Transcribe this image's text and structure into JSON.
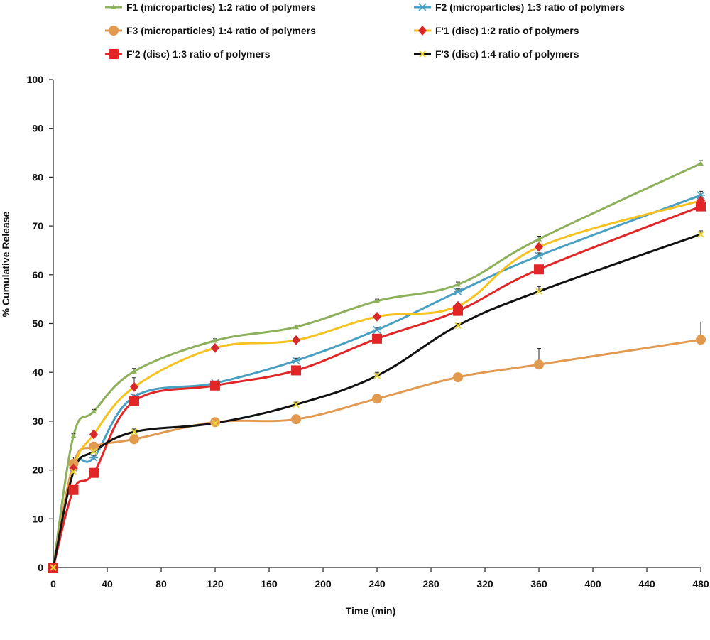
{
  "chart_data": {
    "type": "line",
    "xlabel": "Time (min)",
    "ylabel": "% Cumulative Release",
    "xlim": [
      0,
      480
    ],
    "ylim": [
      0,
      100
    ],
    "x_ticks": [
      "0",
      "40",
      "80",
      "120",
      "160",
      "200",
      "240",
      "280",
      "320",
      "360",
      "400",
      "440",
      "480"
    ],
    "y_ticks": [
      "0",
      "10",
      "20",
      "30",
      "40",
      "50",
      "60",
      "70",
      "80",
      "90",
      "100"
    ],
    "grid": false,
    "legend_position": "top",
    "x": [
      0,
      15,
      30,
      60,
      120,
      180,
      240,
      300,
      360,
      480
    ],
    "series": [
      {
        "name": "F1 (microparticles) 1:2 ratio of polymers",
        "color": "#8db05a",
        "marker": "triangle",
        "values": [
          0,
          27,
          32,
          40.2,
          46.5,
          49.3,
          54.6,
          58,
          67.3,
          82.8
        ],
        "error": [
          0,
          0.4,
          0.4,
          0.6,
          0.4,
          0.4,
          0.4,
          0.5,
          0.6,
          0.6
        ]
      },
      {
        "name": "F2 (microparticles) 1:3 ratio of polymers",
        "color": "#4aa0c2",
        "marker": "asterisk",
        "values": [
          0,
          20.5,
          22.5,
          35,
          37.8,
          42.4,
          48.7,
          56.5,
          63.9,
          76.3
        ],
        "error": [
          0,
          0.5,
          0.5,
          0.6,
          0.4,
          0.5,
          0.5,
          0.6,
          0.6,
          0.8
        ]
      },
      {
        "name": "F3 (microparticles) 1:4 ratio of polymers",
        "color": "#e29a50",
        "marker": "circle",
        "values": [
          0,
          21.3,
          24.8,
          26.3,
          29.8,
          30.4,
          34.6,
          39,
          41.6,
          46.7
        ],
        "error": [
          0,
          0.6,
          0.5,
          0.5,
          0.5,
          0.5,
          0.5,
          0.8,
          3.3,
          3.6
        ]
      },
      {
        "name": "F'1 (disc) 1:2 ratio of polymers",
        "color": "#f6c21f",
        "marker": "diamond",
        "marker_color": "#d8282a",
        "values": [
          0,
          20.3,
          27.3,
          37,
          45,
          46.6,
          51.4,
          53.6,
          65.7,
          75.2
        ],
        "error": [
          0,
          0.6,
          0.5,
          1.9,
          0.5,
          0.5,
          0.5,
          0.5,
          0.6,
          0.7
        ]
      },
      {
        "name": "F'2 (disc) 1:3 ratio of polymers",
        "color": "#e02626",
        "marker": "square",
        "values": [
          0,
          15.9,
          19.4,
          34.1,
          37.3,
          40.4,
          46.9,
          52.6,
          61.1,
          74
        ],
        "error": [
          0,
          0.4,
          0.4,
          0.6,
          0.4,
          0.5,
          0.5,
          0.6,
          0.6,
          0.7
        ]
      },
      {
        "name": "F'3 (disc) 1:4 ratio of polymers",
        "color": "#111111",
        "marker": "x",
        "marker_color": "#e8d533",
        "values": [
          0,
          19.6,
          23.8,
          27.8,
          29.6,
          33.4,
          39.3,
          49.6,
          56.6,
          68.3
        ],
        "error": [
          0,
          3,
          0.5,
          0.6,
          0.4,
          0.5,
          0.7,
          0.4,
          1,
          0.7
        ]
      }
    ]
  }
}
